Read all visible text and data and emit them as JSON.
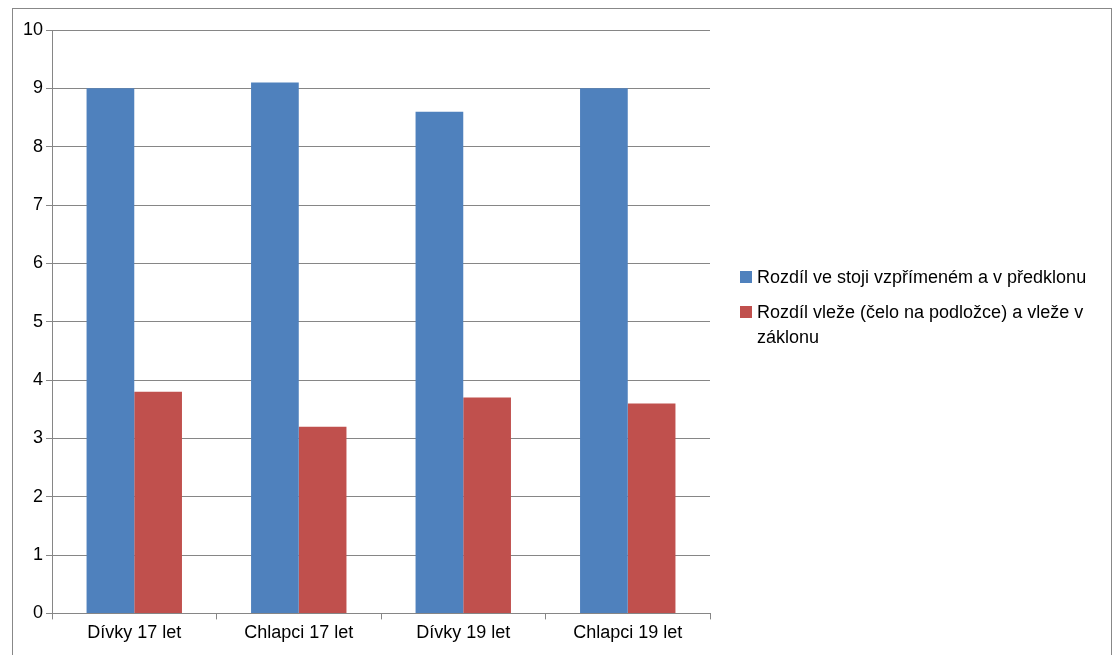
{
  "chart_data": {
    "type": "bar",
    "categories": [
      "Dívky 17 let",
      "Chlapci 17 let",
      "Dívky 19 let",
      "Chlapci 19 let"
    ],
    "series": [
      {
        "name": "Rozdíl ve stoji vzpřímeném a v předklonu",
        "color": "#4f81bd",
        "values": [
          9,
          9.1,
          8.6,
          9
        ]
      },
      {
        "name": "Rozdíl vleže (čelo na podložce) a vleže v záklonu",
        "color": "#c0504d",
        "values": [
          3.8,
          3.2,
          3.7,
          3.6
        ]
      }
    ],
    "ylim": [
      0,
      10
    ],
    "yticks": [
      0,
      1,
      2,
      3,
      4,
      5,
      6,
      7,
      8,
      9,
      10
    ],
    "grid": "y",
    "legend": "right"
  }
}
